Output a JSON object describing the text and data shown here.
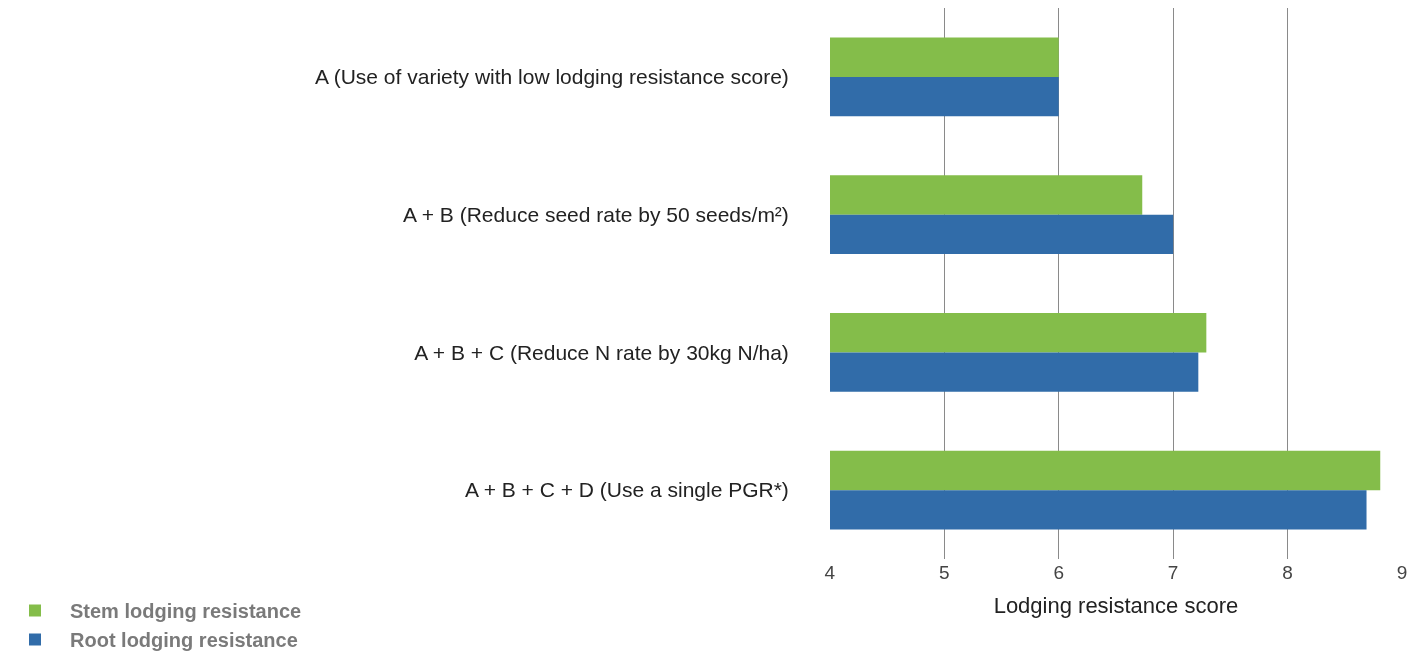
{
  "chart_data": {
    "type": "bar",
    "orientation": "horizontal",
    "xlabel": "Lodging resistance score",
    "categories": [
      "A (Use of variety with low lodging resistance score)",
      "A + B (Reduce seed rate by 50 seeds/m²)",
      "A + B + C (Reduce N rate by 30kg N/ha)",
      "A + B + C + D (Use a single PGR*)"
    ],
    "series": [
      {
        "name": "Stem lodging resistance",
        "color": "#84bd4a",
        "values": [
          6.0,
          6.73,
          7.29,
          8.81
        ]
      },
      {
        "name": "Root lodging resistance",
        "color": "#316ca9",
        "values": [
          6.0,
          7.0,
          7.22,
          8.69
        ]
      }
    ],
    "xlim": [
      4,
      9
    ],
    "xticks": [
      4,
      5,
      6,
      7,
      8,
      9
    ],
    "grid": "x",
    "legend": "bottom left"
  }
}
